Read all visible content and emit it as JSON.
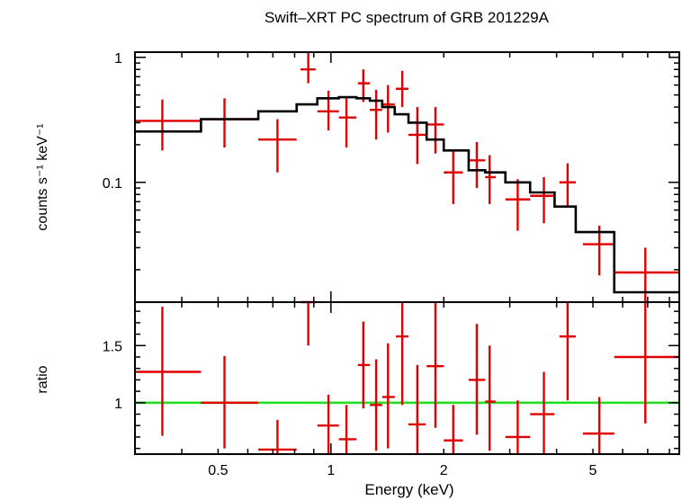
{
  "chart_data": {
    "type": "scatter",
    "title": "Swift–XRT PC spectrum of GRB 201229A",
    "xlabel": "Energy (keV)",
    "x_scale": "log",
    "xlim": [
      0.3,
      8.5
    ],
    "x_ticks": [
      0.5,
      1,
      2,
      5
    ],
    "x_tick_labels": [
      "0.5",
      "1",
      "2",
      "5"
    ],
    "panels": [
      {
        "name": "spectrum",
        "ylabel": "counts s⁻¹ keV⁻¹",
        "y_scale": "log",
        "ylim": [
          0.011,
          1.1
        ],
        "y_ticks": [
          0.1,
          1
        ],
        "y_tick_labels": [
          "0.1",
          "1"
        ],
        "data": [
          {
            "x": 0.355,
            "xlo": 0.3,
            "xhi": 0.45,
            "y": 0.31,
            "ylo": 0.18,
            "yhi": 0.46
          },
          {
            "x": 0.52,
            "xlo": 0.45,
            "xhi": 0.64,
            "y": 0.32,
            "ylo": 0.19,
            "yhi": 0.47
          },
          {
            "x": 0.72,
            "xlo": 0.64,
            "xhi": 0.81,
            "y": 0.22,
            "ylo": 0.12,
            "yhi": 0.32
          },
          {
            "x": 0.87,
            "xlo": 0.83,
            "xhi": 0.91,
            "y": 0.8,
            "ylo": 0.62,
            "yhi": 1.1
          },
          {
            "x": 0.985,
            "xlo": 0.92,
            "xhi": 1.05,
            "y": 0.37,
            "ylo": 0.26,
            "yhi": 0.54
          },
          {
            "x": 1.1,
            "xlo": 1.05,
            "xhi": 1.17,
            "y": 0.33,
            "ylo": 0.19,
            "yhi": 0.47
          },
          {
            "x": 1.22,
            "xlo": 1.18,
            "xhi": 1.27,
            "y": 0.62,
            "ylo": 0.44,
            "yhi": 0.8
          },
          {
            "x": 1.32,
            "xlo": 1.27,
            "xhi": 1.37,
            "y": 0.38,
            "ylo": 0.22,
            "yhi": 0.55
          },
          {
            "x": 1.42,
            "xlo": 1.37,
            "xhi": 1.48,
            "y": 0.42,
            "ylo": 0.25,
            "yhi": 0.6
          },
          {
            "x": 1.55,
            "xlo": 1.49,
            "xhi": 1.61,
            "y": 0.56,
            "ylo": 0.4,
            "yhi": 0.78
          },
          {
            "x": 1.7,
            "xlo": 1.61,
            "xhi": 1.79,
            "y": 0.24,
            "ylo": 0.14,
            "yhi": 0.4
          },
          {
            "x": 1.9,
            "xlo": 1.8,
            "xhi": 2.0,
            "y": 0.29,
            "ylo": 0.17,
            "yhi": 0.4
          },
          {
            "x": 2.12,
            "xlo": 2.0,
            "xhi": 2.25,
            "y": 0.12,
            "ylo": 0.067,
            "yhi": 0.18
          },
          {
            "x": 2.45,
            "xlo": 2.33,
            "xhi": 2.58,
            "y": 0.15,
            "ylo": 0.09,
            "yhi": 0.21
          },
          {
            "x": 2.65,
            "xlo": 2.58,
            "xhi": 2.75,
            "y": 0.11,
            "ylo": 0.067,
            "yhi": 0.165
          },
          {
            "x": 3.15,
            "xlo": 2.92,
            "xhi": 3.4,
            "y": 0.073,
            "ylo": 0.041,
            "yhi": 0.106
          },
          {
            "x": 3.7,
            "xlo": 3.4,
            "xhi": 3.95,
            "y": 0.078,
            "ylo": 0.047,
            "yhi": 0.11
          },
          {
            "x": 4.28,
            "xlo": 4.07,
            "xhi": 4.5,
            "y": 0.1,
            "ylo": 0.064,
            "yhi": 0.142
          },
          {
            "x": 5.2,
            "xlo": 4.7,
            "xhi": 5.7,
            "y": 0.032,
            "ylo": 0.018,
            "yhi": 0.045
          },
          {
            "x": 6.9,
            "xlo": 5.7,
            "xhi": 8.5,
            "y": 0.019,
            "ylo": 0.011,
            "yhi": 0.03
          }
        ],
        "model_steps": [
          {
            "x0": 0.3,
            "x1": 0.45,
            "y": 0.255
          },
          {
            "x0": 0.45,
            "x1": 0.64,
            "y": 0.32
          },
          {
            "x0": 0.64,
            "x1": 0.81,
            "y": 0.37
          },
          {
            "x0": 0.81,
            "x1": 0.92,
            "y": 0.42
          },
          {
            "x0": 0.92,
            "x1": 1.05,
            "y": 0.47
          },
          {
            "x0": 1.05,
            "x1": 1.17,
            "y": 0.48
          },
          {
            "x0": 1.17,
            "x1": 1.27,
            "y": 0.47
          },
          {
            "x0": 1.27,
            "x1": 1.37,
            "y": 0.45
          },
          {
            "x0": 1.37,
            "x1": 1.48,
            "y": 0.4
          },
          {
            "x0": 1.48,
            "x1": 1.61,
            "y": 0.35
          },
          {
            "x0": 1.61,
            "x1": 1.8,
            "y": 0.3
          },
          {
            "x0": 1.8,
            "x1": 2.0,
            "y": 0.22
          },
          {
            "x0": 2.0,
            "x1": 2.33,
            "y": 0.18
          },
          {
            "x0": 2.33,
            "x1": 2.58,
            "y": 0.125
          },
          {
            "x0": 2.58,
            "x1": 2.92,
            "y": 0.12
          },
          {
            "x0": 2.92,
            "x1": 3.4,
            "y": 0.1
          },
          {
            "x0": 3.4,
            "x1": 3.95,
            "y": 0.083
          },
          {
            "x0": 3.95,
            "x1": 4.5,
            "y": 0.064
          },
          {
            "x0": 4.5,
            "x1": 5.7,
            "y": 0.04
          },
          {
            "x0": 5.7,
            "x1": 8.5,
            "y": 0.0132
          }
        ]
      },
      {
        "name": "ratio",
        "ylabel": "ratio",
        "y_scale": "linear",
        "ylim": [
          0.55,
          1.88
        ],
        "y_ticks": [
          1,
          1.5
        ],
        "y_tick_labels": [
          "1",
          "1.5"
        ],
        "reference_line": 1,
        "data": [
          {
            "x": 0.355,
            "xlo": 0.3,
            "xhi": 0.45,
            "y": 1.27,
            "ylo": 0.71,
            "yhi": 1.84
          },
          {
            "x": 0.52,
            "xlo": 0.45,
            "xhi": 0.64,
            "y": 1.0,
            "ylo": 0.6,
            "yhi": 1.41
          },
          {
            "x": 0.72,
            "xlo": 0.64,
            "xhi": 0.81,
            "y": 0.59,
            "ylo": 0.55,
            "yhi": 0.85
          },
          {
            "x": 0.87,
            "xlo": 0.83,
            "xhi": 0.91,
            "y": 1.88,
            "ylo": 1.5,
            "yhi": 1.88
          },
          {
            "x": 0.985,
            "xlo": 0.92,
            "xhi": 1.05,
            "y": 0.8,
            "ylo": 0.55,
            "yhi": 1.07
          },
          {
            "x": 1.1,
            "xlo": 1.05,
            "xhi": 1.17,
            "y": 0.68,
            "ylo": 0.55,
            "yhi": 0.98
          },
          {
            "x": 1.22,
            "xlo": 1.18,
            "xhi": 1.27,
            "y": 1.33,
            "ylo": 0.95,
            "yhi": 1.71
          },
          {
            "x": 1.32,
            "xlo": 1.27,
            "xhi": 1.37,
            "y": 0.98,
            "ylo": 0.58,
            "yhi": 1.38
          },
          {
            "x": 1.42,
            "xlo": 1.37,
            "xhi": 1.48,
            "y": 1.05,
            "ylo": 0.6,
            "yhi": 1.52
          },
          {
            "x": 1.55,
            "xlo": 1.49,
            "xhi": 1.61,
            "y": 1.58,
            "ylo": 0.98,
            "yhi": 1.88
          },
          {
            "x": 1.7,
            "xlo": 1.61,
            "xhi": 1.79,
            "y": 0.81,
            "ylo": 0.55,
            "yhi": 1.33
          },
          {
            "x": 1.9,
            "xlo": 1.8,
            "xhi": 2.0,
            "y": 1.32,
            "ylo": 0.78,
            "yhi": 1.88
          },
          {
            "x": 2.12,
            "xlo": 2.0,
            "xhi": 2.25,
            "y": 0.67,
            "ylo": 0.55,
            "yhi": 0.98
          },
          {
            "x": 2.45,
            "xlo": 2.33,
            "xhi": 2.58,
            "y": 1.2,
            "ylo": 0.72,
            "yhi": 1.69
          },
          {
            "x": 2.65,
            "xlo": 2.58,
            "xhi": 2.75,
            "y": 1.01,
            "ylo": 0.58,
            "yhi": 1.5
          },
          {
            "x": 3.15,
            "xlo": 2.92,
            "xhi": 3.4,
            "y": 0.7,
            "ylo": 0.55,
            "yhi": 1.02
          },
          {
            "x": 3.7,
            "xlo": 3.4,
            "xhi": 3.95,
            "y": 0.9,
            "ylo": 0.55,
            "yhi": 1.27
          },
          {
            "x": 4.28,
            "xlo": 4.07,
            "xhi": 4.5,
            "y": 1.58,
            "ylo": 1.02,
            "yhi": 1.88
          },
          {
            "x": 5.2,
            "xlo": 4.7,
            "xhi": 5.7,
            "y": 0.73,
            "ylo": 0.55,
            "yhi": 1.05
          },
          {
            "x": 6.9,
            "xlo": 5.7,
            "xhi": 8.5,
            "y": 1.4,
            "ylo": 0.82,
            "yhi": 1.88
          }
        ]
      }
    ],
    "colors": {
      "data": "#e00000",
      "model": "#000000",
      "reference": "#22e022",
      "axes": "#000000"
    },
    "grid": false,
    "legend": "none"
  }
}
